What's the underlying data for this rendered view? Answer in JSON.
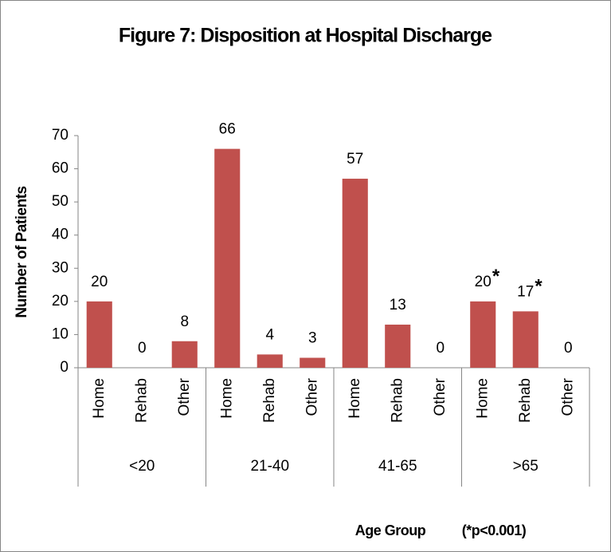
{
  "chart_data": {
    "type": "bar",
    "title": "Figure 7: Disposition at Hospital Discharge",
    "y_label": "Number of Patients",
    "x_label": "Age Group",
    "note": "(*p<0.001)",
    "categories": [
      "Home",
      "Rehab",
      "Other",
      "Home",
      "Rehab",
      "Other",
      "Home",
      "Rehab",
      "Other",
      "Home",
      "Rehab",
      "Other"
    ],
    "groups": [
      "<20",
      "21-40",
      "41-65",
      ">65"
    ],
    "values": [
      20,
      0,
      8,
      66,
      4,
      3,
      57,
      13,
      0,
      20,
      17,
      0
    ],
    "significant": [
      false,
      false,
      false,
      false,
      false,
      false,
      false,
      false,
      false,
      true,
      true,
      false
    ],
    "significance_marker": "*",
    "color": "#c0504d",
    "ylim": [
      0,
      70
    ],
    "yticks": [
      0,
      10,
      20,
      30,
      40,
      50,
      60,
      70
    ],
    "grid": false
  }
}
